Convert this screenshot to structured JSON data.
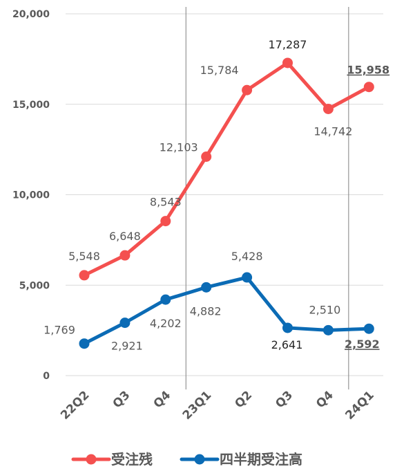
{
  "chart_data": {
    "type": "line",
    "categories": [
      "22Q2",
      "Q3",
      "Q4",
      "23Q1",
      "Q2",
      "Q3",
      "Q4",
      "24Q1"
    ],
    "ylim": [
      0,
      20000
    ],
    "yticks": [
      0,
      5000,
      10000,
      15000,
      20000
    ],
    "ytick_labels": [
      "0",
      "5,000",
      "10,000",
      "15,000",
      "20,000"
    ],
    "grid": true,
    "legend_position": "bottom",
    "separators_after_category": [
      2,
      6
    ],
    "series": [
      {
        "name": "受注残",
        "color": "#F4504F",
        "values": [
          5548,
          6648,
          8543,
          12103,
          15784,
          17287,
          14742,
          15958
        ],
        "labels": [
          "5,548",
          "6,648",
          "8,543",
          "12,103",
          "15,784",
          "17,287",
          "14,742",
          "15,958"
        ]
      },
      {
        "name": "四半期受注高",
        "color": "#0B6BB5",
        "values": [
          1769,
          2921,
          4202,
          4882,
          5428,
          2641,
          2510,
          2592
        ],
        "labels": [
          "1,769",
          "2,921",
          "4,202",
          "4,882",
          "5,428",
          "2,641",
          "2,510",
          "2,592"
        ]
      }
    ]
  }
}
